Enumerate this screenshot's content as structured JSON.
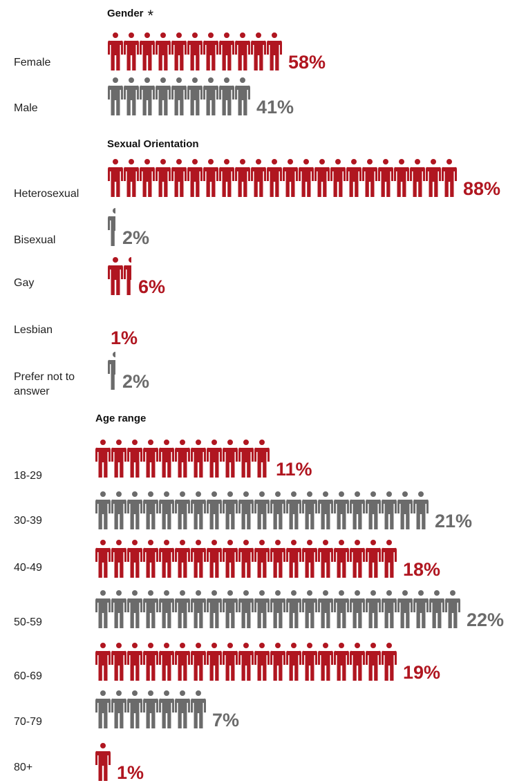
{
  "colors": {
    "primary": "#b01620",
    "secondary": "#6b6b6b"
  },
  "chart_data": [
    {
      "type": "bar",
      "title": "Gender",
      "title_marker": "*",
      "categories": [
        "Female",
        "Male"
      ],
      "values": [
        58,
        41
      ],
      "value_labels": [
        "58%",
        "41%"
      ],
      "icon_counts": [
        11,
        9
      ],
      "encoding": "pictograph",
      "icon_name": "person-icon",
      "colors": [
        "#b01620",
        "#6b6b6b"
      ]
    },
    {
      "type": "bar",
      "title": "Sexual Orientation",
      "categories": [
        "Heterosexual",
        "Bisexual",
        "Gay",
        "Lesbian",
        "Prefer not to answer"
      ],
      "category_lines": [
        [
          "Heterosexual"
        ],
        [
          "Bisexual"
        ],
        [
          "Gay"
        ],
        [
          "Lesbian"
        ],
        [
          "Prefer not to",
          "answer"
        ]
      ],
      "values": [
        88,
        2,
        6,
        1,
        2
      ],
      "value_labels": [
        "88%",
        "2%",
        "6%",
        "1%",
        "2%"
      ],
      "icon_counts": [
        22,
        0.5,
        1.5,
        0,
        0.5
      ],
      "encoding": "pictograph",
      "icon_name": "person-icon",
      "colors": [
        "#b01620",
        "#6b6b6b",
        "#b01620",
        "#b01620",
        "#6b6b6b"
      ]
    },
    {
      "type": "bar",
      "title": "Age range",
      "categories": [
        "18-29",
        "30-39",
        "40-49",
        "50-59",
        "60-69",
        "70-79",
        "80+"
      ],
      "values": [
        11,
        21,
        18,
        22,
        19,
        7,
        1
      ],
      "value_labels": [
        "11%",
        "21%",
        "18%",
        "22%",
        "19%",
        "7%",
        "1%"
      ],
      "icon_counts": [
        11,
        21,
        19,
        23,
        19,
        7,
        1
      ],
      "encoding": "pictograph",
      "icon_name": "person-icon",
      "colors": [
        "#b01620",
        "#6b6b6b",
        "#b01620",
        "#6b6b6b",
        "#b01620",
        "#6b6b6b",
        "#b01620"
      ]
    }
  ]
}
